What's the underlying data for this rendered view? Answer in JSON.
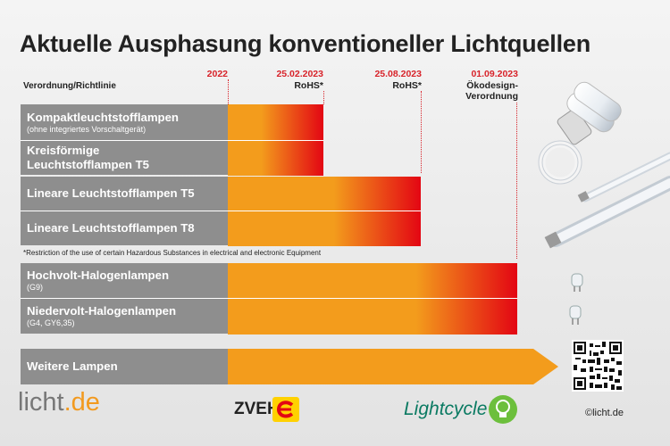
{
  "title": "Aktuelle Ausphasung konventioneller Lichtquellen",
  "column_header": "Verordnung/Richtlinie",
  "milestones": [
    {
      "date": "2022",
      "note": ""
    },
    {
      "date": "25.02.2023",
      "note": "RoHS*"
    },
    {
      "date": "25.08.2023",
      "note": "RoHS*"
    },
    {
      "date": "01.09.2023",
      "note_lines": [
        "Ökodesign-",
        "Verordnung"
      ]
    }
  ],
  "chart_data": {
    "type": "bar",
    "orientation": "horizontal",
    "title": "Aktuelle Ausphasung konventioneller Lichtquellen",
    "x_milestones": [
      "2022",
      "25.02.2023",
      "25.08.2023",
      "01.09.2023"
    ],
    "categories": [
      {
        "label": "Kompaktleuchtstofflampen",
        "sublabel": "(ohne integriertes Vorschaltgerät)",
        "end": "25.02.2023"
      },
      {
        "label_lines": [
          "Kreisförmige",
          "Leuchtstofflampen T5"
        ],
        "end": "25.02.2023"
      },
      {
        "label": "Lineare Leuchtstofflampen T5",
        "end": "25.08.2023"
      },
      {
        "label": "Lineare Leuchtstofflampen T8",
        "end": "25.08.2023"
      },
      {
        "label": "Hochvolt-Halogenlampen",
        "sublabel": "(G9)",
        "end": "01.09.2023"
      },
      {
        "label": "Niedervolt-Halogenlampen",
        "sublabel": "(G4, GY6,35)",
        "end": "01.09.2023"
      },
      {
        "label": "Weitere Lampen",
        "end": "ongoing"
      }
    ],
    "colors": {
      "bar_start": "#f39c1c",
      "bar_end": "#e30613",
      "label_bg": "#8e8e8e",
      "milestone": "#d8232a"
    }
  },
  "footnote": "*Restriction of the use of certain Hazardous Substances in electrical and electronic Equipment",
  "logos": {
    "licht_prefix": "licht",
    "licht_suffix": ".de",
    "zveh": "ZVEH",
    "lightcycle": "Lightcycle"
  },
  "copyright": "©licht.de"
}
